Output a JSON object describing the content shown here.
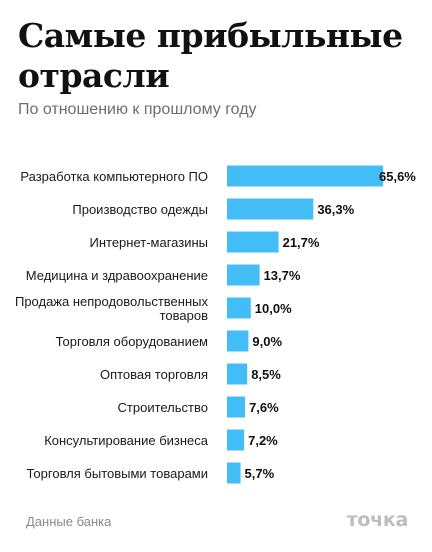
{
  "header": {
    "title": "Самые прибыльные отрасли",
    "subtitle": "По отношению к прошлому году"
  },
  "footer": {
    "source": "Данные банка",
    "logo_text": "точка"
  },
  "colors": {
    "bar": "#42bdf5",
    "label": "#1a1a1a",
    "value": "#111111"
  },
  "chart_data": {
    "type": "bar",
    "orientation": "horizontal",
    "title": "Самые прибыльные отрасли",
    "subtitle": "По отношению к прошлому году",
    "categories": [
      [
        "Разработка компьютерного ПО"
      ],
      [
        "Производство одежды"
      ],
      [
        "Интернет-магазины"
      ],
      [
        "Медицина и здравоохранение"
      ],
      [
        "Продажа непродовольственных",
        "товаров"
      ],
      [
        "Торговля оборудованием"
      ],
      [
        "Оптовая торговля"
      ],
      [
        "Строительство"
      ],
      [
        "Консультирование бизнеса"
      ],
      [
        "Торговля бытовыми товарами"
      ]
    ],
    "values": [
      65.6,
      36.3,
      21.7,
      13.7,
      10.0,
      9.0,
      8.5,
      7.6,
      7.2,
      5.7
    ],
    "value_labels": [
      "65,6%",
      "36,3%",
      "21,7%",
      "13,7%",
      "10,0%",
      "9,0%",
      "8,5%",
      "7,6%",
      "7,2%",
      "5,7%"
    ],
    "xlim": [
      0,
      65.6
    ],
    "grid": false,
    "legend": "none"
  }
}
